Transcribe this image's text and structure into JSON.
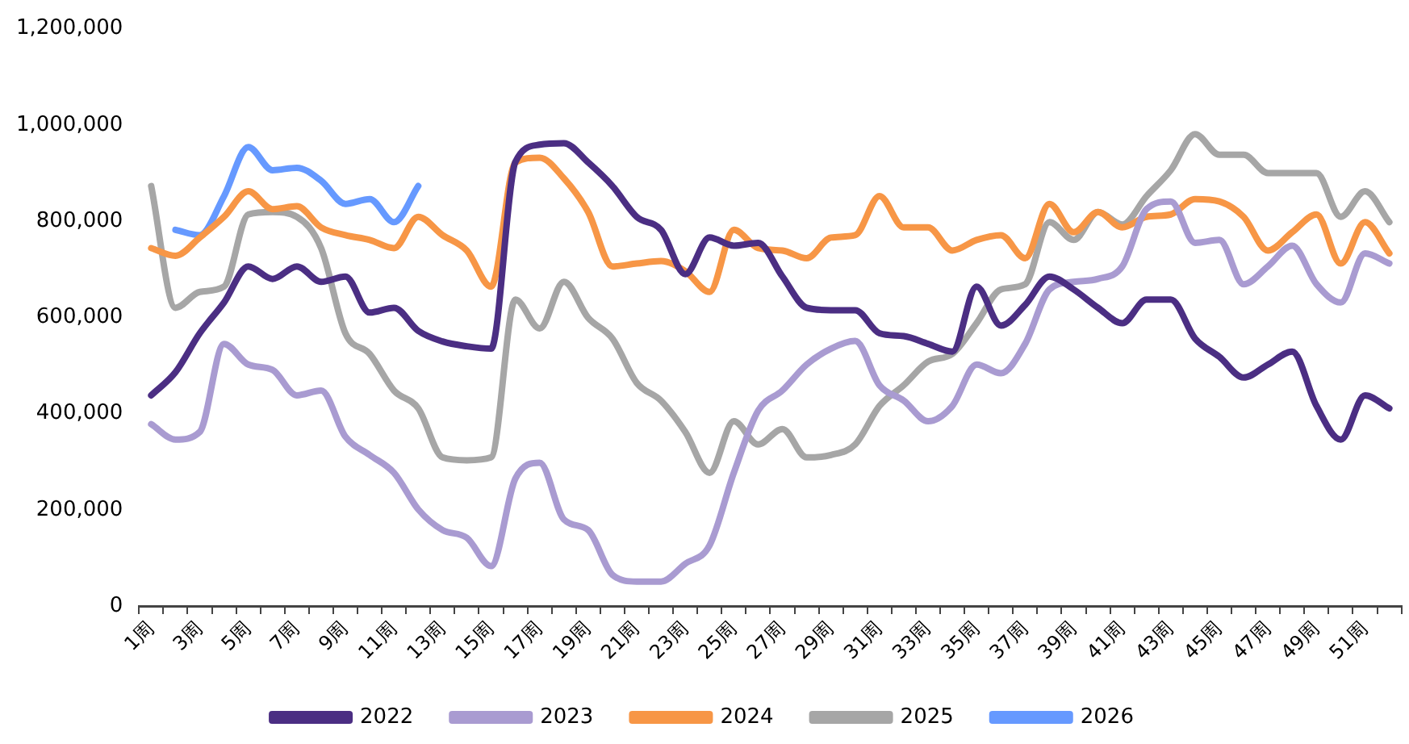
{
  "chart_data": {
    "type": "line",
    "categories": [
      "1周",
      null,
      "3周",
      null,
      "5周",
      null,
      "7周",
      null,
      "9周",
      null,
      "11周",
      null,
      "13周",
      null,
      "15周",
      null,
      "17周",
      null,
      "19周",
      null,
      "21周",
      null,
      "23周",
      null,
      "25周",
      null,
      "27周",
      null,
      "29周",
      null,
      "31周",
      null,
      "33周",
      null,
      "35周",
      null,
      "37周",
      null,
      "39周",
      null,
      "41周",
      null,
      "43周",
      null,
      "45周",
      null,
      "47周",
      null,
      "49周",
      null,
      "51周",
      null
    ],
    "series": [
      {
        "name": "2022",
        "color": "#4b2e83",
        "values": [
          438000,
          486000,
          567000,
          631000,
          706000,
          680000,
          706000,
          674000,
          685000,
          610000,
          620000,
          572000,
          550000,
          540000,
          535000,
          923000,
          959000,
          962000,
          922000,
          873000,
          809000,
          782000,
          690000,
          766000,
          749000,
          755000,
          685000,
          620000,
          615000,
          615000,
          567000,
          561000,
          545000,
          529000,
          664000,
          583000,
          626000,
          685000,
          658000,
          620000,
          588000,
          637000,
          637000,
          556000,
          518000,
          475000,
          502000,
          529000,
          416000,
          346000,
          438000,
          411000
        ]
      },
      {
        "name": "2023",
        "color": "#a99bd1",
        "values": [
          378000,
          346000,
          362000,
          545000,
          502000,
          491000,
          438000,
          448000,
          352000,
          314000,
          277000,
          201000,
          158000,
          142000,
          83000,
          265000,
          298000,
          180000,
          158000,
          65000,
          51000,
          51000,
          88000,
          126000,
          277000,
          406000,
          448000,
          502000,
          535000,
          551000,
          459000,
          427000,
          384000,
          416000,
          502000,
          484000,
          545000,
          658000,
          674000,
          680000,
          706000,
          825000,
          841000,
          755000,
          761000,
          669000,
          706000,
          749000,
          669000,
          631000,
          733000,
          712000
        ]
      },
      {
        "name": "2024",
        "color": "#f79646",
        "values": [
          744000,
          728000,
          766000,
          809000,
          862000,
          825000,
          831000,
          787000,
          771000,
          761000,
          744000,
          809000,
          771000,
          739000,
          664000,
          922000,
          932000,
          889000,
          819000,
          706000,
          712000,
          717000,
          696000,
          653000,
          782000,
          744000,
          739000,
          723000,
          766000,
          771000,
          852000,
          787000,
          787000,
          739000,
          761000,
          771000,
          723000,
          836000,
          777000,
          819000,
          787000,
          809000,
          814000,
          846000,
          841000,
          809000,
          739000,
          777000,
          814000,
          712000,
          798000,
          733000
        ]
      },
      {
        "name": "2025",
        "color": "#a6a6a6",
        "values": [
          873000,
          620000,
          653000,
          664000,
          814000,
          819000,
          809000,
          744000,
          567000,
          524000,
          448000,
          411000,
          309000,
          303000,
          309000,
          637000,
          577000,
          674000,
          599000,
          556000,
          464000,
          427000,
          362000,
          277000,
          384000,
          336000,
          368000,
          309000,
          314000,
          336000,
          416000,
          459000,
          508000,
          524000,
          588000,
          658000,
          669000,
          798000,
          761000,
          819000,
          793000,
          852000,
          906000,
          981000,
          938000,
          938000,
          900000,
          900000,
          900000,
          809000,
          862000,
          798000
        ]
      },
      {
        "name": "2026",
        "color": "#6699ff",
        "values": [
          null,
          782000,
          771000,
          852000,
          954000,
          906000,
          911000,
          884000,
          836000,
          846000,
          798000,
          873000,
          null,
          null,
          null,
          null,
          null,
          null,
          null,
          null,
          null,
          null,
          null,
          null,
          null,
          null,
          null,
          null,
          null,
          null,
          null,
          null,
          null,
          null,
          null,
          null,
          null,
          null,
          null,
          null,
          null,
          null,
          null,
          null,
          null,
          null,
          null,
          null,
          null,
          null,
          null,
          null
        ]
      }
    ],
    "ylim": [
      0,
      1200000
    ],
    "yticks": [
      0,
      {
        "value": 200000,
        "label": "200,000"
      },
      {
        "value": 400000,
        "label": "400,000"
      },
      {
        "value": 600000,
        "label": "600,000"
      },
      {
        "value": 800000,
        "label": "800,000"
      },
      {
        "value": 1000000,
        "label": "1,000,000"
      },
      {
        "value": 1200000,
        "label": "1,200,000"
      }
    ],
    "grid": false,
    "legend": "bottom"
  }
}
